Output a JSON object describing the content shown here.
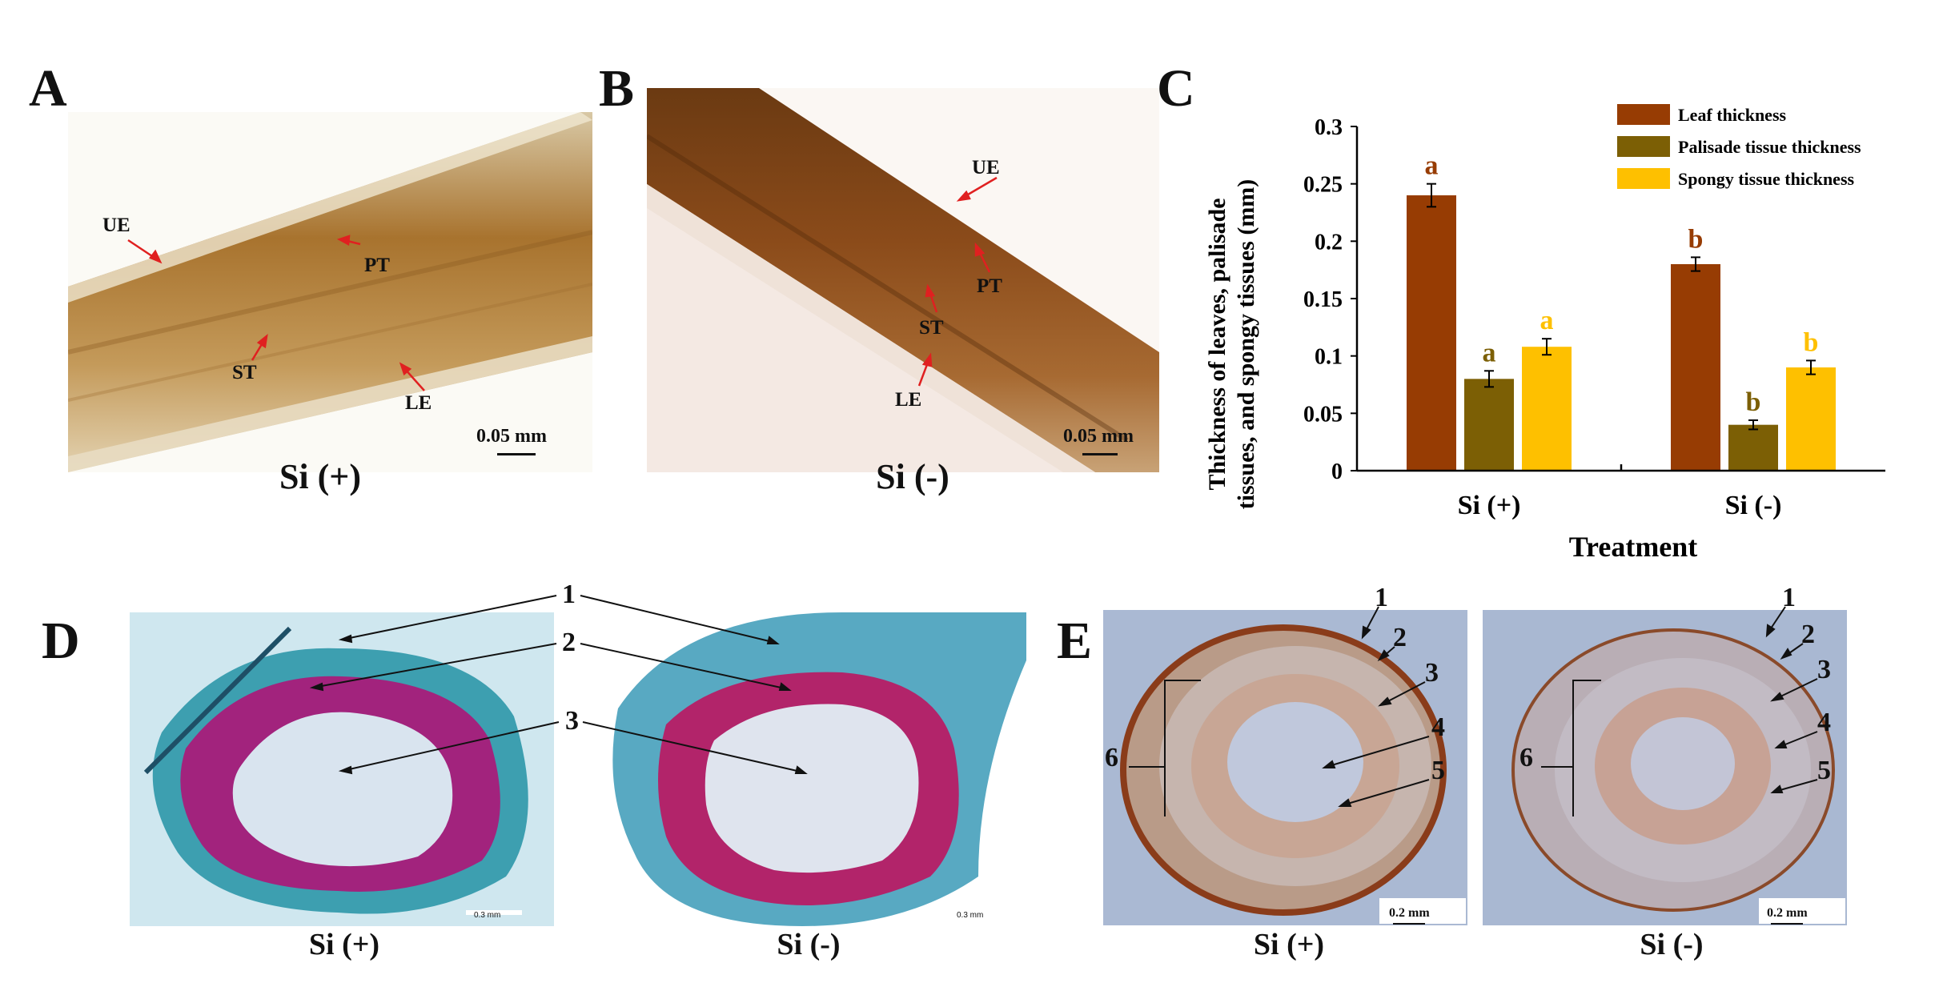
{
  "panels": {
    "A": {
      "letter": "A",
      "caption": "Si (+)",
      "scale": "0.05 mm",
      "labels": {
        "ue": "UE",
        "pt": "PT",
        "st": "ST",
        "le": "LE"
      }
    },
    "B": {
      "letter": "B",
      "caption": "Si (-)",
      "scale": "0.05 mm",
      "labels": {
        "ue": "UE",
        "pt": "PT",
        "st": "ST",
        "le": "LE"
      }
    },
    "C": {
      "letter": "C"
    },
    "D": {
      "letter": "D",
      "caption_left": "Si (+)",
      "caption_right": "Si (-)",
      "scale_left": "0.3 mm",
      "scale_right": "0.3 mm",
      "num1": "1",
      "num2": "2",
      "num3": "3"
    },
    "E": {
      "letter": "E",
      "caption_left": "Si (+)",
      "caption_right": "Si (-)",
      "scale_left": "0.2 mm",
      "scale_right": "0.2 mm",
      "left_nums": {
        "n1": "1",
        "n2": "2",
        "n3": "3",
        "n4": "4",
        "n5": "5",
        "n6": "6"
      },
      "right_nums": {
        "n1": "1",
        "n2": "2",
        "n3": "3",
        "n4": "4",
        "n5": "5",
        "n6": "6"
      }
    }
  },
  "chart_data": {
    "type": "bar",
    "xlabel": "Treatment",
    "ylabel_lines": [
      "Thickness of leaves, palisade",
      "tissues, and spongy tissues (mm)"
    ],
    "categories": [
      "Si (+)",
      "Si (-)"
    ],
    "ylim": [
      0,
      0.3
    ],
    "yticks": [
      0,
      0.05,
      0.1,
      0.15,
      0.2,
      0.25,
      0.3
    ],
    "ytick_labels": [
      "0",
      "0.05",
      "0.1",
      "0.15",
      "0.2",
      "0.25",
      "0.3"
    ],
    "legend_position": "top-right",
    "series": [
      {
        "name": "Leaf thickness",
        "color": "#973C03",
        "values": [
          0.24,
          0.18
        ],
        "errors": [
          0.01,
          0.006
        ],
        "letters": [
          "a",
          "b"
        ]
      },
      {
        "name": "Palisade tissue thickness",
        "color": "#7C5F05",
        "values": [
          0.08,
          0.04
        ],
        "errors": [
          0.007,
          0.004
        ],
        "letters": [
          "a",
          "b"
        ]
      },
      {
        "name": "Spongy tissue thickness",
        "color": "#FEC000",
        "values": [
          0.108,
          0.09
        ],
        "errors": [
          0.007,
          0.006
        ],
        "letters": [
          "a",
          "b"
        ]
      }
    ]
  }
}
